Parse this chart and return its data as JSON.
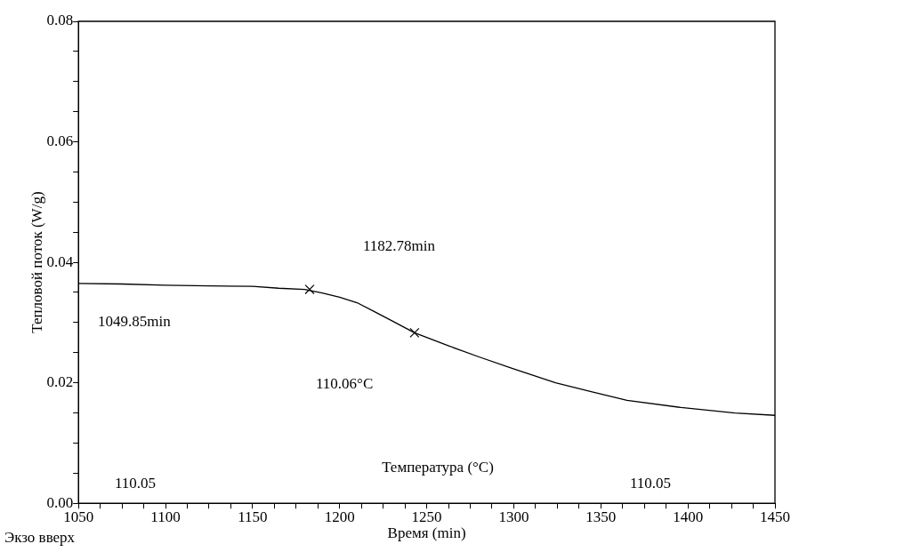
{
  "chart_data": {
    "type": "line",
    "xlabel": "Время (min)",
    "ylabel": "Тепловой поток (W/g)",
    "x": [
      1050,
      1075,
      1100,
      1125,
      1150,
      1165,
      1180,
      1190,
      1200,
      1210,
      1220,
      1230,
      1243,
      1262,
      1280,
      1299,
      1324,
      1345,
      1365,
      1396,
      1427,
      1450
    ],
    "series": [
      {
        "color": "#000000",
        "values": [
          0.0365,
          0.0364,
          0.0362,
          0.0361,
          0.036,
          0.0357,
          0.0355,
          0.0349,
          0.0342,
          0.0333,
          0.0318,
          0.0303,
          0.0283,
          0.0262,
          0.0243,
          0.0224,
          0.02,
          0.0185,
          0.0171,
          0.0159,
          0.015,
          0.0146
        ]
      },
      {
        "type": "scatter",
        "marker": "cross",
        "color": "#000000",
        "x": [
          1182.78,
          1243
        ],
        "values": [
          0.0355,
          0.0283
        ]
      }
    ],
    "xlim": [
      1050,
      1450
    ],
    "xticks": [
      1050,
      {
        "value": 1062.5,
        "label": null
      },
      {
        "value": 1075,
        "label": null
      },
      {
        "value": 1087.5,
        "label": null
      },
      1100,
      {
        "value": 1112.5,
        "label": null
      },
      {
        "value": 1125,
        "label": null
      },
      {
        "value": 1137.5,
        "label": null
      },
      1150,
      {
        "value": 1162.5,
        "label": null
      },
      {
        "value": 1175,
        "label": null
      },
      {
        "value": 1187.5,
        "label": null
      },
      1200,
      {
        "value": 1212.5,
        "label": null
      },
      {
        "value": 1225,
        "label": null
      },
      {
        "value": 1237.5,
        "label": null
      },
      1250,
      {
        "value": 1262.5,
        "label": null
      },
      {
        "value": 1275,
        "label": null
      },
      {
        "value": 1287.5,
        "label": null
      },
      1300,
      {
        "value": 1312.5,
        "label": null
      },
      {
        "value": 1325,
        "label": null
      },
      {
        "value": 1337.5,
        "label": null
      },
      1350,
      {
        "value": 1362.5,
        "label": null
      },
      {
        "value": 1375,
        "label": null
      },
      {
        "value": 1387.5,
        "label": null
      },
      1400,
      {
        "value": 1412.5,
        "label": null
      },
      {
        "value": 1425,
        "label": null
      },
      {
        "value": 1437.5,
        "label": null
      },
      1450
    ],
    "ylim": [
      0,
      0.08
    ],
    "yticks": [
      {
        "value": 0,
        "label": "0.00"
      },
      {
        "value": 0.005,
        "label": null
      },
      {
        "value": 0.01,
        "label": null
      },
      {
        "value": 0.015,
        "label": null
      },
      {
        "value": 0.02,
        "label": "0.02"
      },
      {
        "value": 0.025,
        "label": null
      },
      {
        "value": 0.03,
        "label": null
      },
      {
        "value": 0.035,
        "label": null
      },
      {
        "value": 0.04,
        "label": "0.04"
      },
      {
        "value": 0.045,
        "label": null
      },
      {
        "value": 0.05,
        "label": null
      },
      {
        "value": 0.055,
        "label": null
      },
      {
        "value": 0.06,
        "label": "0.06"
      },
      {
        "value": 0.065,
        "label": null
      },
      {
        "value": 0.07,
        "label": null
      },
      {
        "value": 0.075,
        "label": null
      },
      {
        "value": 0.08,
        "label": "0.08"
      }
    ],
    "grid": false,
    "legend": false,
    "marker": "none",
    "line_style": "solid",
    "annotations": [
      "1182.78min",
      "1049.85min",
      "110.06°C",
      "110.05",
      "110.05",
      "Температура (°C)",
      "Экзо вверх"
    ]
  }
}
